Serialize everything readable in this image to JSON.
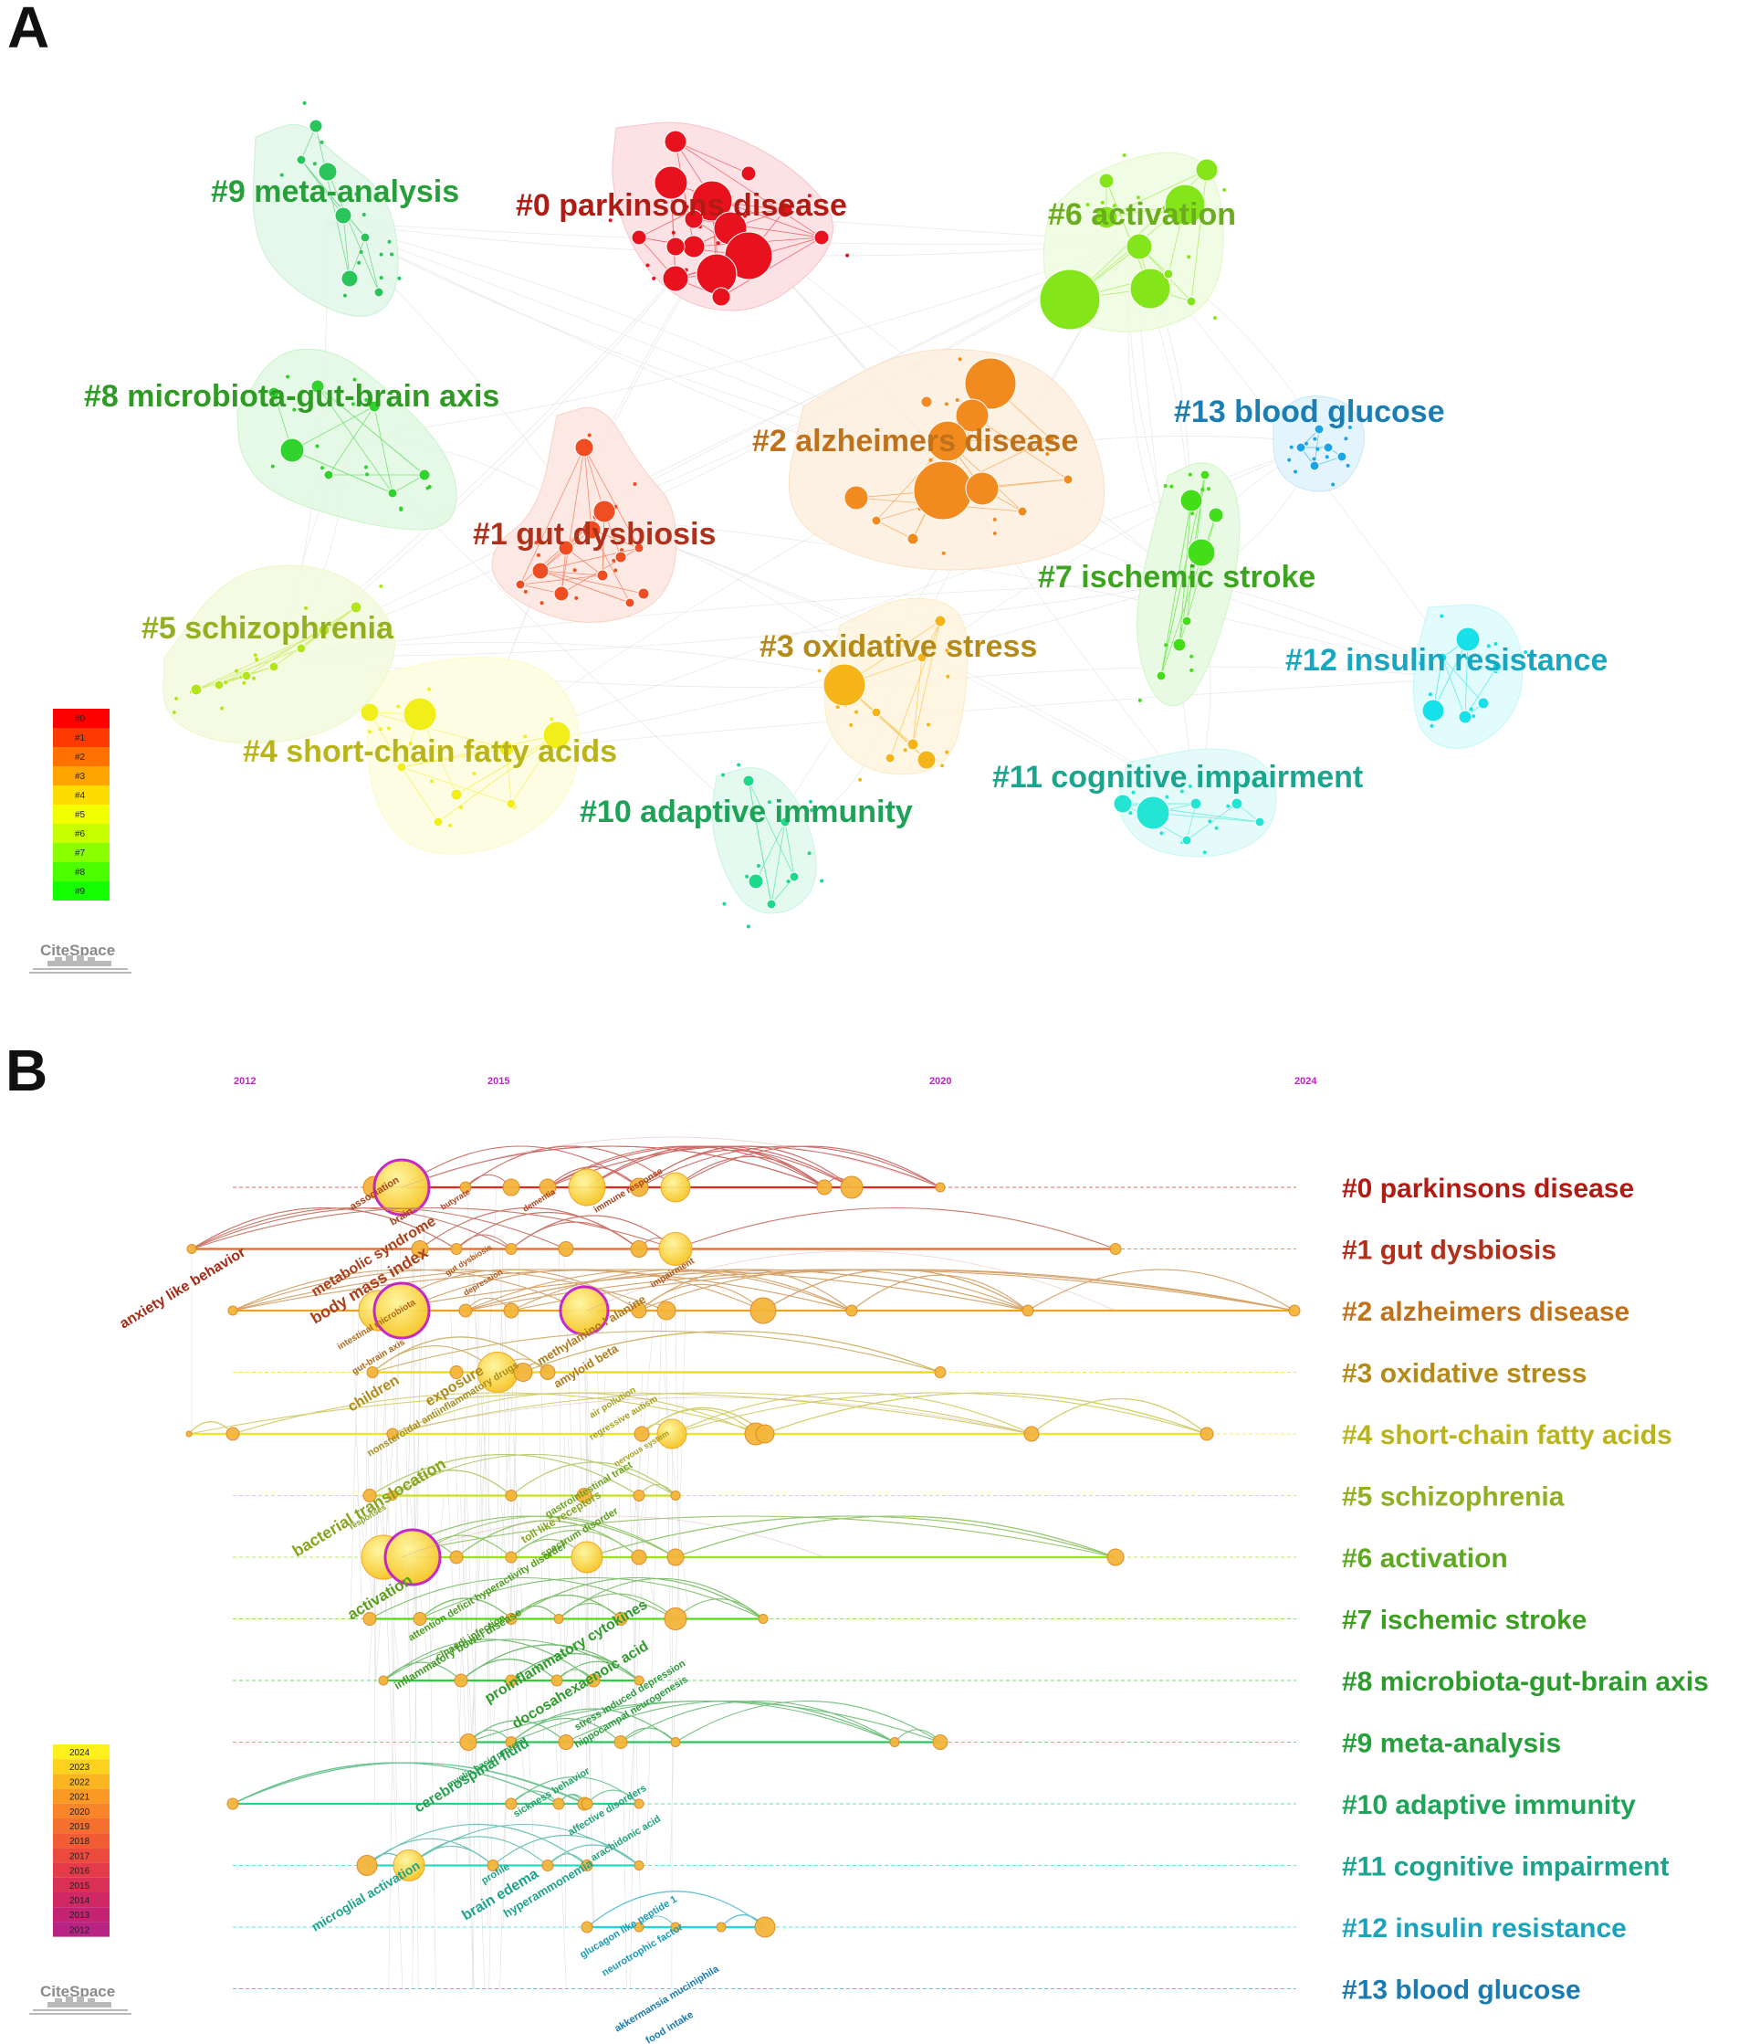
{
  "panels": {
    "a_letter": "A",
    "b_letter": "B"
  },
  "colors": {
    "c0": "#e8121e",
    "c1": "#ef4d22",
    "c2": "#f18a1f",
    "c3": "#f5b519",
    "c4": "#f1ee1a",
    "c5": "#b3e51c",
    "c6": "#84e61a",
    "c7": "#44dd1a",
    "c8": "#30d22e",
    "c9": "#29c55a",
    "c10": "#1ed98b",
    "c11": "#22e5d4",
    "c12": "#16e1e8",
    "c13": "#1aa6e6"
  },
  "clusters_a": [
    {
      "id": "c0",
      "label": "#0 parkinsons disease",
      "text_color": "#b21b14"
    },
    {
      "id": "c1",
      "label": "#1 gut dysbiosis",
      "text_color": "#b1301b"
    },
    {
      "id": "c2",
      "label": "#2 alzheimers disease",
      "text_color": "#c0721a"
    },
    {
      "id": "c3",
      "label": "#3 oxidative stress",
      "text_color": "#b48a18"
    },
    {
      "id": "c4",
      "label": "#4 short-chain fatty acids",
      "text_color": "#b9b41a"
    },
    {
      "id": "c5",
      "label": "#5 schizophrenia",
      "text_color": "#93b020"
    },
    {
      "id": "c6",
      "label": "#6 activation",
      "text_color": "#6cac1f"
    },
    {
      "id": "c7",
      "label": "#7 ischemic stroke",
      "text_color": "#3ca420"
    },
    {
      "id": "c8",
      "label": "#8 microbiota-gut-brain axis",
      "text_color": "#2f9a24"
    },
    {
      "id": "c9",
      "label": "#9 meta-analysis",
      "text_color": "#27a03b"
    },
    {
      "id": "c10",
      "label": "#10 adaptive immunity",
      "text_color": "#1ea258"
    },
    {
      "id": "c11",
      "label": "#11 cognitive impairment",
      "text_color": "#1ba58e"
    },
    {
      "id": "c12",
      "label": "#12 insulin resistance",
      "text_color": "#19a6c0"
    },
    {
      "id": "c13",
      "label": "#13 blood glucose",
      "text_color": "#1a7eb3"
    }
  ],
  "legend_a": [
    "#0",
    "#1",
    "#2",
    "#3",
    "#4",
    "#5",
    "#6",
    "#7",
    "#8",
    "#9"
  ],
  "legend_b": [
    "2024",
    "2023",
    "2022",
    "2021",
    "2020",
    "2019",
    "2018",
    "2017",
    "2016",
    "2015",
    "2014",
    "2013",
    "2012"
  ],
  "years_axis": [
    "2012",
    "2015",
    "2020",
    "2024"
  ],
  "watermark": "CiteSpace",
  "timeline_b": [
    {
      "label": "#0 parkinsons disease",
      "text_color": "#b21b14",
      "line_color": "#e0281f"
    },
    {
      "label": "#1 gut dysbiosis",
      "text_color": "#b1301b",
      "line_color": "#e8671e"
    },
    {
      "label": "#2 alzheimers disease",
      "text_color": "#c0721a",
      "line_color": "#f0a21c"
    },
    {
      "label": "#3 oxidative stress",
      "text_color": "#b48a18",
      "line_color": "#f4d51a"
    },
    {
      "label": "#4 short-chain fatty acids",
      "text_color": "#b9b41a",
      "line_color": "#efe81a"
    },
    {
      "label": "#5 schizophrenia",
      "text_color": "#8fb021",
      "line_color": "#c7e21c"
    },
    {
      "label": "#6 activation",
      "text_color": "#5ea921",
      "line_color": "#9be21b"
    },
    {
      "label": "#7 ischemic stroke",
      "text_color": "#3d9f22",
      "line_color": "#53d91c"
    },
    {
      "label": "#8 microbiota-gut-brain axis",
      "text_color": "#2d9b2c",
      "line_color": "#2fcf38"
    },
    {
      "label": "#9 meta-analysis",
      "text_color": "#27a03b",
      "line_color": "#2ac662"
    },
    {
      "label": "#10 adaptive immunity",
      "text_color": "#1ea458",
      "line_color": "#20d78f"
    },
    {
      "label": "#11 cognitive impairment",
      "text_color": "#1ba38e",
      "line_color": "#22dcc5"
    },
    {
      "label": "#12 insulin resistance",
      "text_color": "#19a3bd",
      "line_color": "#1ad9e4"
    },
    {
      "label": "#13 blood glucose",
      "text_color": "#1a7bb0",
      "line_color": "#1aa7e3"
    }
  ],
  "keywords_b": [
    {
      "text": "anxiety like behavior",
      "color": "#a22c16"
    },
    {
      "text": "association",
      "color": "#a9401a"
    },
    {
      "text": "brain",
      "color": "#a9401a"
    },
    {
      "text": "butyrate",
      "color": "#a9401a"
    },
    {
      "text": "dementia",
      "color": "#a9401a"
    },
    {
      "text": "immune response",
      "color": "#a9401a"
    },
    {
      "text": "metabolic syndrome",
      "color": "#a9401a"
    },
    {
      "text": "body mass index",
      "color": "#a9401a"
    },
    {
      "text": "gut dysbiosis",
      "color": "#b0561a"
    },
    {
      "text": "depression",
      "color": "#b0561a"
    },
    {
      "text": "impairment",
      "color": "#b0561a"
    },
    {
      "text": "intestinal microbiota",
      "color": "#b0681a"
    },
    {
      "text": "gut-brain axis",
      "color": "#b0681a"
    },
    {
      "text": "methylamino l alanine",
      "color": "#b0781a"
    },
    {
      "text": "amyloid beta",
      "color": "#b0781a"
    },
    {
      "text": "children",
      "color": "#b08a1a"
    },
    {
      "text": "exposure",
      "color": "#b08a1a"
    },
    {
      "text": "nonsteroidal antiinflammatory drugs",
      "color": "#a88e1a"
    },
    {
      "text": "air pollution",
      "color": "#a8a01a"
    },
    {
      "text": "regressive autism",
      "color": "#a8a01a"
    },
    {
      "text": "nervous system",
      "color": "#a8a01a"
    },
    {
      "text": "bacterial translocation",
      "color": "#86a51c"
    },
    {
      "text": "responses",
      "color": "#86a51c"
    },
    {
      "text": "toll like receptors",
      "color": "#86a51c"
    },
    {
      "text": "gastrointestinal tract",
      "color": "#6ca21c"
    },
    {
      "text": "activation",
      "color": "#5c9e1c"
    },
    {
      "text": "spectrum disorder",
      "color": "#5c9e1c"
    },
    {
      "text": "attention deficit hyperactivity disorder",
      "color": "#4a9b1e"
    },
    {
      "text": "cinaedi infection",
      "color": "#4a9b1e"
    },
    {
      "text": "inflammatory bowel disease",
      "color": "#3e9a22"
    },
    {
      "text": "proinflammatory cytokines",
      "color": "#2f9b2c"
    },
    {
      "text": "docosahexaenoic acid",
      "color": "#2f9b2c"
    },
    {
      "text": "stress induced depression",
      "color": "#2a9a3c"
    },
    {
      "text": "hippocampal neurogenesis",
      "color": "#2a9a3c"
    },
    {
      "text": "myelin basic protein",
      "color": "#24a050"
    },
    {
      "text": "cerebrospinal fluid",
      "color": "#24a050"
    },
    {
      "text": "sickness behavior",
      "color": "#1ea466"
    },
    {
      "text": "affective disorders",
      "color": "#1ea477"
    },
    {
      "text": "arachidonic acid",
      "color": "#1ea477"
    },
    {
      "text": "microglial activation",
      "color": "#1da38a"
    },
    {
      "text": "profile",
      "color": "#1da38a"
    },
    {
      "text": "brain edema",
      "color": "#1da38a"
    },
    {
      "text": "hyperammonemia",
      "color": "#1da38a"
    },
    {
      "text": "glucagon like peptide 1",
      "color": "#1a9ab5"
    },
    {
      "text": "neurotrophic factor",
      "color": "#1a9ab5"
    },
    {
      "text": "akkermansia muciniphila",
      "color": "#1a7bb0"
    },
    {
      "text": "food intake",
      "color": "#1a7bb0"
    }
  ]
}
